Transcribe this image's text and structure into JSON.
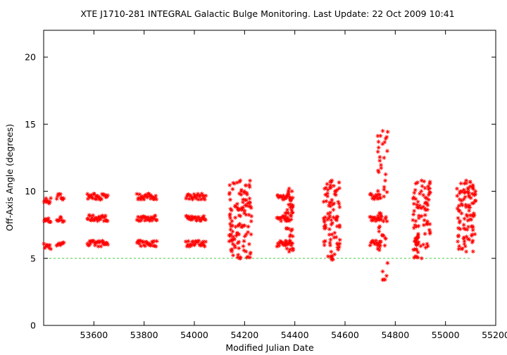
{
  "chart_data": {
    "type": "scatter",
    "title": "XTE J1710-281   INTEGRAL Galactic Bulge Monitoring.  Last Update: 22 Oct 2009 10:41",
    "xlabel": "Modified Julian Date",
    "ylabel": "Off-Axis Angle (degrees)",
    "xlim": [
      53400,
      55200
    ],
    "ylim": [
      0,
      22
    ],
    "x_ticks": [
      53600,
      53800,
      54000,
      54200,
      54400,
      54600,
      54800,
      55000,
      55200
    ],
    "y_ticks": [
      0,
      5,
      10,
      15,
      20
    ],
    "grid": false,
    "reference_line": {
      "y": 5,
      "color": "#44cc44",
      "style": "dashed"
    },
    "marker": {
      "symbol": "asterisk",
      "color": "#ff0000"
    },
    "observation_groups": [
      {
        "x_range": [
          53402,
          53428
        ],
        "y_levels": [
          5.9,
          7.8,
          9.3
        ],
        "type": "band"
      },
      {
        "x_range": [
          53452,
          53480
        ],
        "y_levels": [
          6.1,
          7.9,
          9.6
        ],
        "type": "band"
      },
      {
        "x_range": [
          53574,
          53655
        ],
        "y_levels": [
          6.1,
          8.0,
          9.6
        ],
        "type": "band"
      },
      {
        "x_range": [
          53772,
          53850
        ],
        "y_levels": [
          6.1,
          8.0,
          9.6
        ],
        "type": "band"
      },
      {
        "x_range": [
          53967,
          54045
        ],
        "y_levels": [
          6.1,
          8.0,
          9.6
        ],
        "type": "band"
      },
      {
        "x_range": [
          54138,
          54228
        ],
        "y_range": [
          5.0,
          10.8
        ],
        "type": "scatter"
      },
      {
        "x_range": [
          54330,
          54385
        ],
        "y_levels": [
          6.1,
          8.0,
          9.6
        ],
        "type": "band"
      },
      {
        "x_range": [
          54360,
          54395
        ],
        "y_range": [
          5.5,
          10.2
        ],
        "type": "scatter"
      },
      {
        "x_range": [
          54515,
          54580
        ],
        "y_range": [
          4.9,
          10.8
        ],
        "type": "scatter"
      },
      {
        "x_range": [
          54700,
          54742
        ],
        "y_levels": [
          6.1,
          8.0,
          9.6
        ],
        "type": "band"
      },
      {
        "x_range": [
          54730,
          54770
        ],
        "y_range": [
          3.4,
          14.5
        ],
        "type": "scatter"
      },
      {
        "x_range": [
          54870,
          54940
        ],
        "y_range": [
          5.0,
          10.8
        ],
        "type": "scatter"
      },
      {
        "x_range": [
          55045,
          55120
        ],
        "y_range": [
          5.5,
          10.8
        ],
        "type": "scatter"
      }
    ]
  }
}
